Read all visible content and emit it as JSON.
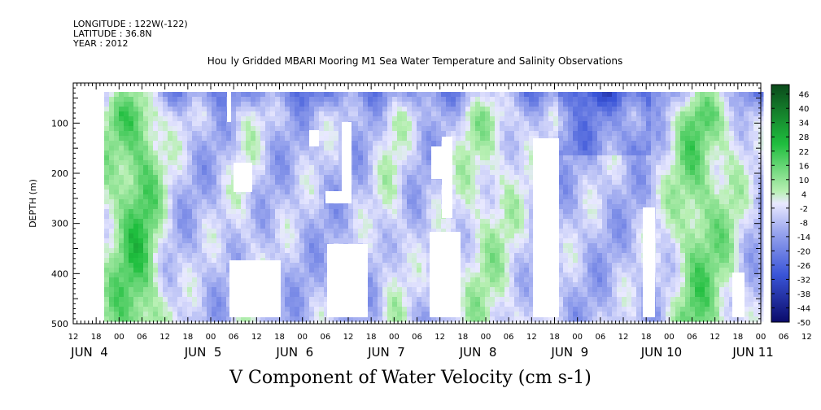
{
  "header": {
    "longitude": "LONGITUDE : 122W(-122)",
    "latitude": "LATITUDE : 36.8N",
    "year": "YEAR : 2012",
    "title": "Hourly Gridded MBARI Mooring M1 Sea Water Temperature and Salinity Observations"
  },
  "colors": {
    "positive_dark": "#0b4a1b",
    "positive_light": "#b9f0b4",
    "neutral": "#e9e9ff",
    "negative_light": "#b8c2f5",
    "negative_dark": "#0a0a6a"
  },
  "chart_data": {
    "type": "heatmap",
    "title": "V Component of Water Velocity (cm s-1)",
    "ylabel": "DEPTH (m)",
    "ylim": [
      500,
      20
    ],
    "y_ticks": [
      100,
      200,
      300,
      400,
      500
    ],
    "y_tick_labels": [
      "100",
      "200",
      "300",
      "400",
      "500"
    ],
    "x_range_hours": [
      -12,
      168
    ],
    "x_tick_labels": [
      "12",
      "18",
      "00",
      "06",
      "12",
      "18",
      "00",
      "06",
      "12",
      "18",
      "00",
      "06",
      "12",
      "18",
      "00",
      "06",
      "12",
      "18",
      "00",
      "06",
      "12",
      "18",
      "00",
      "06",
      "12",
      "18",
      "00",
      "06",
      "12",
      "18",
      "00",
      "06",
      "12"
    ],
    "day_labels": [
      "JUN  4",
      "JUN  5",
      "JUN  6",
      "JUN  7",
      "JUN  8",
      "JUN  9",
      "JUN 10",
      "JUN 11"
    ],
    "colorbar": {
      "min": -50,
      "max": 50,
      "step": 6,
      "tick_labels": [
        "46",
        "40",
        "34",
        "28",
        "22",
        "16",
        "10",
        "4",
        "-2",
        "-8",
        "-14",
        "-20",
        "-26",
        "-32",
        "-38",
        "-44",
        "-50"
      ]
    }
  }
}
